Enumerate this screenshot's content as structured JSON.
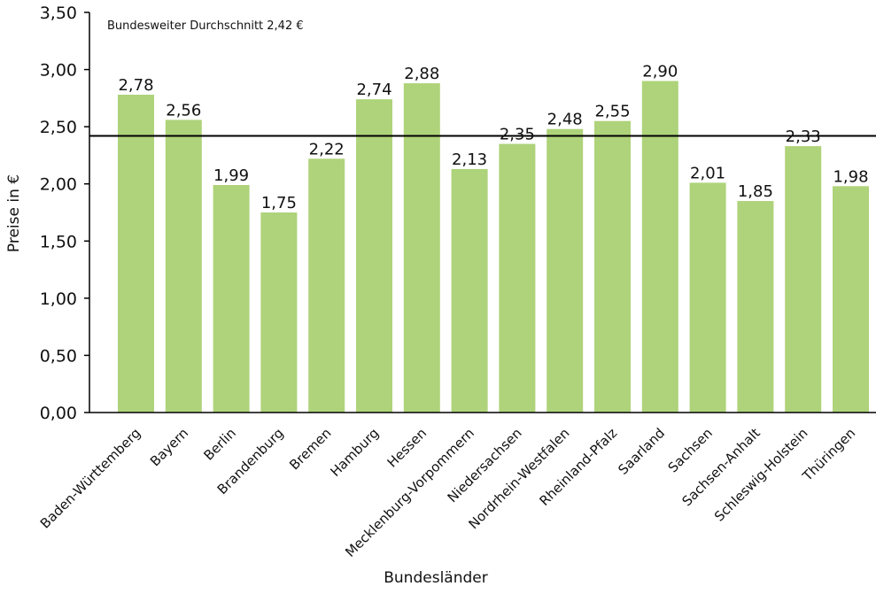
{
  "chart_data": {
    "type": "bar",
    "xlabel": "Bundesländer",
    "ylabel": "Preise in €",
    "ylim": [
      0,
      3.5
    ],
    "yticks": [
      "0,00",
      "0,50",
      "1,00",
      "1,50",
      "2,00",
      "2,50",
      "3,00",
      "3,50"
    ],
    "grid": false,
    "bar_color": "#aed37a",
    "categories": [
      "Baden-Württemberg",
      "Bayern",
      "Berlin",
      "Brandenburg",
      "Bremen",
      "Hamburg",
      "Hessen",
      "Mecklenburg-Vorpommern",
      "Niedersachsen",
      "Nordrhein-Westfalen",
      "Rheinland-Pfalz",
      "Saarland",
      "Sachsen",
      "Sachsen-Anhalt",
      "Schleswig-Holstein",
      "Thüringen"
    ],
    "values": [
      2.78,
      2.56,
      1.99,
      1.75,
      2.22,
      2.74,
      2.88,
      2.13,
      2.35,
      2.48,
      2.55,
      2.9,
      2.01,
      1.85,
      2.33,
      1.98
    ],
    "value_labels": [
      "2,78",
      "2,56",
      "1,99",
      "1,75",
      "2,22",
      "2,74",
      "2,88",
      "2,13",
      "2,35",
      "2,48",
      "2,55",
      "2,90",
      "2,01",
      "1,85",
      "2,33",
      "1,98"
    ],
    "reference_line": {
      "value": 2.42,
      "label": "Bundesweiter Durchschnitt 2,42 €",
      "color": "#000000"
    }
  }
}
